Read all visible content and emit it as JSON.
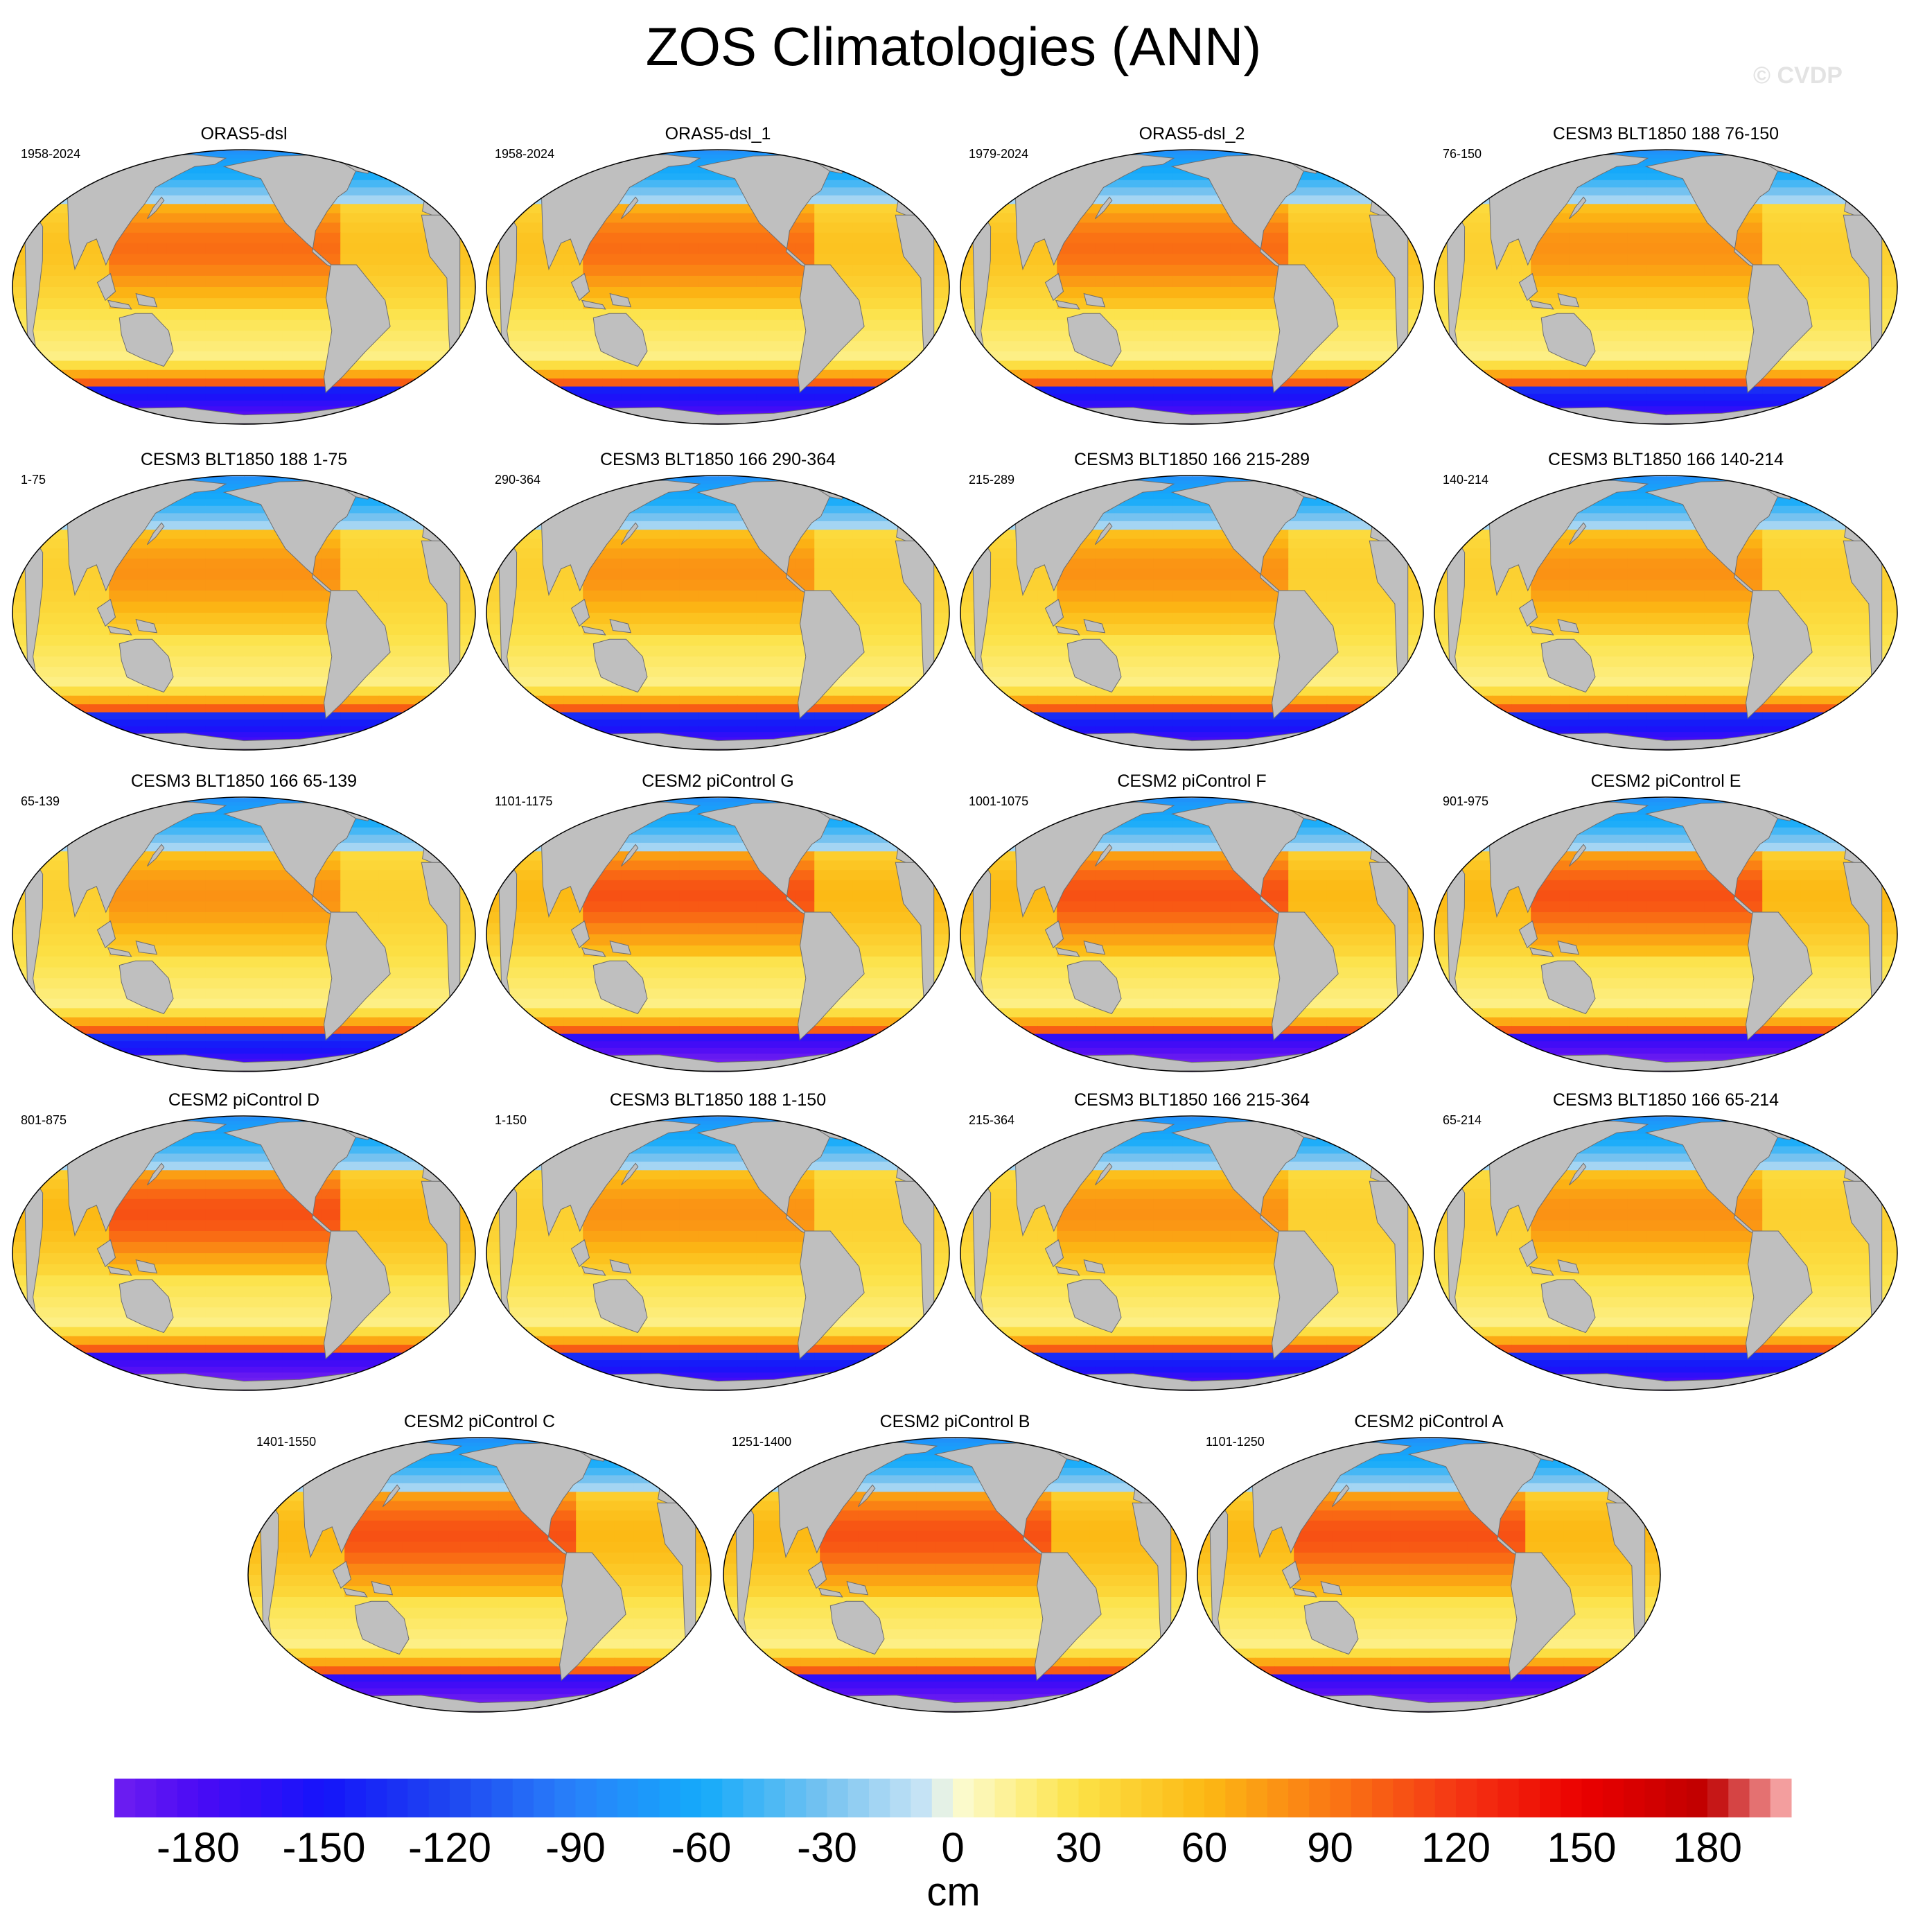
{
  "figure": {
    "title": "ZOS Climatologies (ANN)",
    "watermark": "© CVDP"
  },
  "chart_data": {
    "type": "heatmap",
    "description_units": "cm",
    "variable": "ZOS",
    "season": "ANN",
    "projection": "Robinson (Pacific-centered)",
    "colorbar": {
      "units": "cm",
      "min": -200,
      "max": 200,
      "step": 5,
      "tick_values": [
        -180,
        -150,
        -120,
        -90,
        -60,
        -30,
        0,
        30,
        60,
        90,
        120,
        150,
        180
      ],
      "tick_labels": [
        "-180",
        "-150",
        "-120",
        "-90",
        "-60",
        "-30",
        "0",
        "30",
        "60",
        "90",
        "120",
        "150",
        "180"
      ]
    },
    "panels": [
      {
        "title": "ORAS5-dsl",
        "years": "1958-2024",
        "style": "obs"
      },
      {
        "title": "ORAS5-dsl_1",
        "years": "1958-2024",
        "style": "obs"
      },
      {
        "title": "ORAS5-dsl_2",
        "years": "1979-2024",
        "style": "obs"
      },
      {
        "title": "CESM3 BLT1850 188 76-150",
        "years": "76-150",
        "style": "cesm3"
      },
      {
        "title": "CESM3 BLT1850 188 1-75",
        "years": "1-75",
        "style": "cesm3"
      },
      {
        "title": "CESM3 BLT1850 166 290-364",
        "years": "290-364",
        "style": "cesm3"
      },
      {
        "title": "CESM3 BLT1850 166 215-289",
        "years": "215-289",
        "style": "cesm3"
      },
      {
        "title": "CESM3 BLT1850 166 140-214",
        "years": "140-214",
        "style": "cesm3"
      },
      {
        "title": "CESM3 BLT1850 166 65-139",
        "years": "65-139",
        "style": "cesm3"
      },
      {
        "title": "CESM2 piControl G",
        "years": "1101-1175",
        "style": "cesm2"
      },
      {
        "title": "CESM2 piControl F",
        "years": "1001-1075",
        "style": "cesm2"
      },
      {
        "title": "CESM2 piControl E",
        "years": "901-975",
        "style": "cesm2"
      },
      {
        "title": "CESM2 piControl D",
        "years": "801-875",
        "style": "cesm2"
      },
      {
        "title": "CESM3 BLT1850 188 1-150",
        "years": "1-150",
        "style": "cesm3"
      },
      {
        "title": "CESM3 BLT1850 166 215-364",
        "years": "215-364",
        "style": "cesm3"
      },
      {
        "title": "CESM3 BLT1850 166 65-214",
        "years": "65-214",
        "style": "cesm3"
      },
      {
        "title": "CESM2 piControl C",
        "years": "1401-1550",
        "style": "cesm2"
      },
      {
        "title": "CESM2 piControl B",
        "years": "1251-1400",
        "style": "cesm2"
      },
      {
        "title": "CESM2 piControl A",
        "years": "1101-1250",
        "style": "cesm2"
      }
    ]
  }
}
